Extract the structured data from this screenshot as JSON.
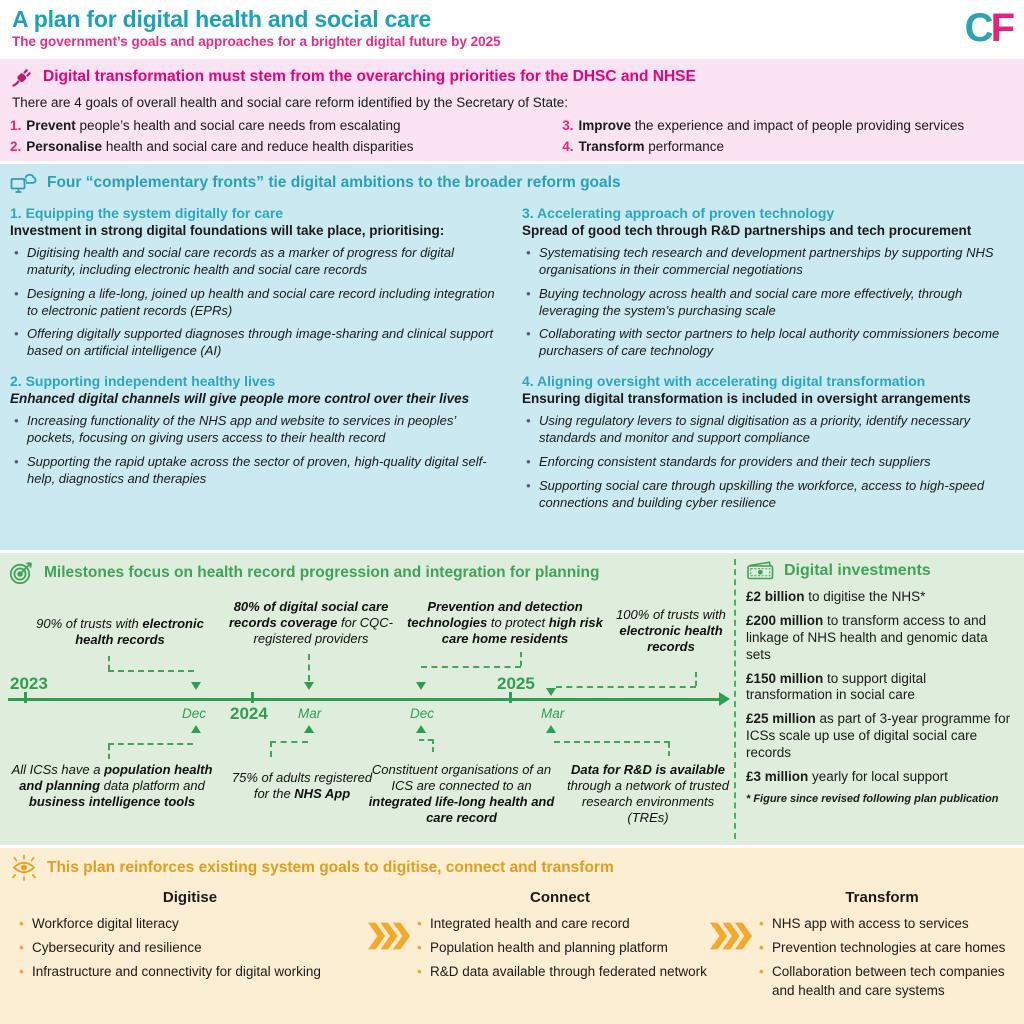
{
  "header": {
    "title": "A plan for digital health and social care",
    "subtitle": "The government’s goals and approaches for a brighter digital future by 2025",
    "logo_c": "C",
    "logo_f": "F"
  },
  "colors": {
    "teal_accent": "#1CA2B6",
    "magenta_accent": "#E5007E",
    "green_accent": "#3EA356",
    "orange_accent": "#DE9F1B",
    "purple_bullet": "#5C4E9B",
    "pink_bg": "#FAE3F2",
    "teal_bg": "#CBE9F0",
    "green_bg": "#DFEEDC",
    "orange_bg": "#FCEED3"
  },
  "priorities": {
    "icon": "plug-icon",
    "heading": "Digital transformation must stem from the overarching priorities for the DHSC and NHSE",
    "intro": "There are 4 goals of overall health and social care reform identified by the Secretary of State:",
    "goals": [
      {
        "num": "1.",
        "bold": "Prevent",
        "rest": " people’s health and social care needs from escalating"
      },
      {
        "num": "2.",
        "bold": "Personalise",
        "rest": " health and social care and reduce health disparities"
      },
      {
        "num": "3.",
        "bold": "Improve",
        "rest": " the experience and impact of people providing services"
      },
      {
        "num": "4.",
        "bold": "Transform",
        "rest": " performance"
      }
    ]
  },
  "fronts": {
    "icon": "cloud-sync-icon",
    "heading": "Four “complementary fronts” tie digital ambitions to the broader reform goals",
    "left": [
      {
        "title": "1. Equipping the system digitally for care",
        "lead": [
          {
            "t": "Investment in strong digital foundations will take place, prioritising:",
            "b": true
          }
        ],
        "bullets": [
          "Digitising health and social care records as a marker of progress for digital maturity, including electronic health and social care records",
          "Designing a life-long, joined up health and social care record including integration to electronic patient records (EPRs)",
          "Offering digitally supported diagnoses through image-sharing and clinical support based on artificial intelligence (AI)"
        ]
      },
      {
        "title": "2. Supporting independent healthy lives",
        "lead": [
          {
            "t": "Enhanced digital channels will give people more control over their lives",
            "b": true,
            "i": true
          }
        ],
        "bullets": [
          "Increasing functionality of the NHS app and website to services in peoples’ pockets, focusing on giving users access to their health record",
          "Supporting the rapid uptake across the sector of proven, high-quality digital self-help, diagnostics and therapies"
        ]
      }
    ],
    "right": [
      {
        "title": "3. Accelerating approach of proven technology",
        "lead": [
          {
            "t": "Spread of good tech through R&D partnerships and tech procurement",
            "b": true
          }
        ],
        "bullets": [
          "Systematising tech research and development partnerships by supporting NHS organisations in their commercial negotiations",
          "Buying technology across health and social care more effectively, through leveraging the system’s purchasing scale",
          "Collaborating with sector partners to help local authority commissioners become purchasers of care technology"
        ]
      },
      {
        "title": "4. Aligning oversight with accelerating digital transformation",
        "lead": [
          {
            "t": "Ensuring digital transformation is included in oversight arrangements",
            "b": true
          }
        ],
        "bullets": [
          "Using regulatory levers to signal digitisation as a priority, identify necessary standards and monitor and support compliance",
          "Enforcing consistent standards for providers and their tech suppliers",
          "Supporting social care through upskilling the workforce, access to high-speed connections and building cyber resilience"
        ]
      }
    ]
  },
  "milestones": {
    "icon": "target-icon",
    "heading": "Milestones focus on health record progression and integration for planning",
    "top": [
      [
        {
          "t": "90% of trusts with "
        },
        {
          "t": "electronic health records",
          "b": true
        }
      ],
      [
        {
          "t": "80% of digital social care records coverage",
          "b": true
        },
        {
          "t": " for CQC-registered providers"
        }
      ],
      [
        {
          "t": "Prevention and detection technologies",
          "b": true
        },
        {
          "t": " to protect "
        },
        {
          "t": "high risk care home residents",
          "b": true
        }
      ],
      [
        {
          "t": "100% of trusts with "
        },
        {
          "t": "electronic health records",
          "b": true
        }
      ]
    ],
    "bottom": [
      [
        {
          "t": "All ICSs have a "
        },
        {
          "t": "population health and planning",
          "b": true
        },
        {
          "t": " data platform and "
        },
        {
          "t": "business intelligence tools",
          "b": true
        }
      ],
      [
        {
          "t": "75% of adults registered for the "
        },
        {
          "t": "NHS App",
          "b": true
        }
      ],
      [
        {
          "t": "Constituent organisations of an ICS are connected to an "
        },
        {
          "t": "integrated life-long health and care record",
          "b": true
        }
      ],
      [
        {
          "t": "Data for R&D is available",
          "b": true
        },
        {
          "t": " through a network of trusted research environments (TREs)"
        }
      ]
    ],
    "timeline": {
      "year_start": "2023",
      "year_mid": "2024",
      "year_end": "2025",
      "months": [
        "Dec",
        "Mar",
        "Dec",
        "Mar"
      ]
    }
  },
  "investments": {
    "icon": "money-icon",
    "heading": "Digital investments",
    "items": [
      {
        "amount": "£2 billion",
        "rest": " to digitise the NHS*"
      },
      {
        "amount": "£200 million",
        "rest": " to transform access to and linkage of NHS health and genomic data sets"
      },
      {
        "amount": "£150 million",
        "rest": " to support digital transformation in social care"
      },
      {
        "amount": "£25 million",
        "rest": " as part of 3-year programme for ICSs scale up use of digital social care records"
      },
      {
        "amount": "£3 million",
        "rest": " yearly for local support"
      }
    ],
    "footnote": "* Figure since revised following plan publication"
  },
  "system_goals": {
    "icon": "eye-icon",
    "heading": "This plan reinforces existing system goals to digitise, connect and transform",
    "chevron_icon": "triple-chevron-right-icon",
    "columns": [
      {
        "title": "Digitise",
        "bullets": [
          "Workforce digital literacy",
          "Cybersecurity and resilience",
          "Infrastructure and connectivity for digital working"
        ]
      },
      {
        "title": "Connect",
        "bullets": [
          "Integrated health and care record",
          "Population health and planning platform",
          "R&D data available through federated network"
        ]
      },
      {
        "title": "Transform",
        "bullets": [
          "NHS app with access to services",
          "Prevention technologies at care homes",
          "Collaboration between tech companies and health and care systems"
        ]
      }
    ]
  }
}
